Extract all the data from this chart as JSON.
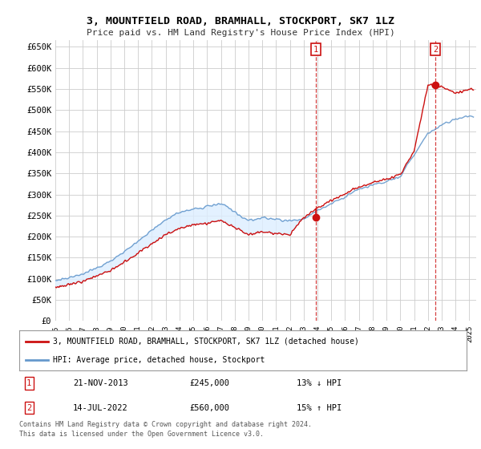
{
  "title": "3, MOUNTFIELD ROAD, BRAMHALL, STOCKPORT, SK7 1LZ",
  "subtitle": "Price paid vs. HM Land Registry's House Price Index (HPI)",
  "ylabel_ticks": [
    "£0",
    "£50K",
    "£100K",
    "£150K",
    "£200K",
    "£250K",
    "£300K",
    "£350K",
    "£400K",
    "£450K",
    "£500K",
    "£550K",
    "£600K",
    "£650K"
  ],
  "ytick_values": [
    0,
    50000,
    100000,
    150000,
    200000,
    250000,
    300000,
    350000,
    400000,
    450000,
    500000,
    550000,
    600000,
    650000
  ],
  "xlim_start": 1995.0,
  "xlim_end": 2025.5,
  "ylim_min": 0,
  "ylim_max": 665000,
  "background_color": "#ffffff",
  "plot_bg_color": "#ffffff",
  "grid_color": "#cccccc",
  "hpi_color": "#6699cc",
  "price_color": "#cc1111",
  "fill_color": "#ddeeff",
  "transaction1_date": "21-NOV-2013",
  "transaction1_price": 245000,
  "transaction1_label": "13% ↓ HPI",
  "transaction1_x": 2013.89,
  "transaction2_date": "14-JUL-2022",
  "transaction2_price": 560000,
  "transaction2_label": "15% ↑ HPI",
  "transaction2_x": 2022.53,
  "legend_label_price": "3, MOUNTFIELD ROAD, BRAMHALL, STOCKPORT, SK7 1LZ (detached house)",
  "legend_label_hpi": "HPI: Average price, detached house, Stockport",
  "footer": "Contains HM Land Registry data © Crown copyright and database right 2024.\nThis data is licensed under the Open Government Licence v3.0.",
  "hpi_years": [
    1995,
    1996,
    1997,
    1998,
    1999,
    2000,
    2001,
    2002,
    2003,
    2004,
    2005,
    2006,
    2007,
    2008,
    2009,
    2010,
    2011,
    2012,
    2013,
    2014,
    2015,
    2016,
    2017,
    2018,
    2019,
    2020,
    2021,
    2022,
    2023,
    2024,
    2025
  ],
  "hpi_vals": [
    95000,
    102000,
    112000,
    125000,
    142000,
    165000,
    188000,
    215000,
    240000,
    258000,
    265000,
    272000,
    278000,
    258000,
    238000,
    245000,
    242000,
    238000,
    242000,
    262000,
    278000,
    295000,
    312000,
    322000,
    330000,
    342000,
    395000,
    445000,
    465000,
    478000,
    485000
  ],
  "price_years": [
    1995,
    1996,
    1997,
    1998,
    1999,
    2000,
    2001,
    2002,
    2003,
    2004,
    2005,
    2006,
    2007,
    2008,
    2009,
    2010,
    2011,
    2012,
    2013,
    2014,
    2015,
    2016,
    2017,
    2018,
    2019,
    2020,
    2021,
    2022,
    2023,
    2024,
    2025
  ],
  "price_vals": [
    80000,
    86000,
    95000,
    106000,
    120000,
    140000,
    160000,
    183000,
    205000,
    220000,
    228000,
    232000,
    238000,
    222000,
    205000,
    212000,
    208000,
    205000,
    245000,
    268000,
    285000,
    302000,
    318000,
    328000,
    335000,
    348000,
    402000,
    560000,
    555000,
    540000,
    550000
  ]
}
